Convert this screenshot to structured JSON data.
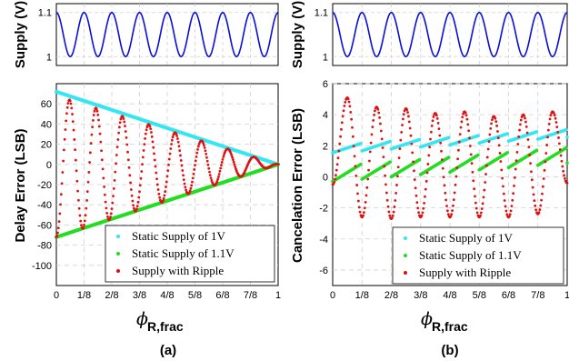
{
  "colors": {
    "static_1v": "#33e6f2",
    "static_1_1v": "#22dd22",
    "ripple": "#e01010",
    "supply": "#0a10d8",
    "grid": "#d0d0d0"
  },
  "panels": [
    {
      "label": "(a)",
      "x_label_symbol": "ϕ",
      "x_label_subscript": "R,frac",
      "supply_chart": {
        "type": "line",
        "ylabel": "Supply (V)",
        "yticks": [
          "1.1",
          "1"
        ],
        "ytick_values": [
          1.1,
          1.0
        ],
        "ylim": [
          0.98,
          1.12
        ],
        "cycles": 8,
        "range": [
          1.0,
          1.1
        ]
      },
      "main_chart": {
        "type": "scatter",
        "ylabel": "Delay Error (LSB)",
        "ylim": [
          -120,
          80
        ],
        "yticks": [
          "60",
          "40",
          "20",
          "0",
          "-20",
          "-40",
          "-60",
          "-80",
          "-100"
        ],
        "ytick_values": [
          60,
          40,
          20,
          0,
          -20,
          -40,
          -60,
          -80,
          -100
        ],
        "xlim": [
          0,
          1
        ],
        "xticks": [
          "0",
          "1/8",
          "2/8",
          "3/8",
          "4/8",
          "5/8",
          "6/8",
          "7/8",
          "1"
        ],
        "legend_position": "bottom-right",
        "series": [
          {
            "name": "Static Supply of 1V",
            "color_key": "static_1v",
            "x": [
              0,
              1
            ],
            "y": [
              72,
              0
            ]
          },
          {
            "name": "Static Supply of 1.1V",
            "color_key": "static_1_1v",
            "x": [
              0,
              1
            ],
            "y": [
              -72,
              0
            ]
          },
          {
            "name": "Supply with Ripple",
            "color_key": "ripple",
            "cycles": 8,
            "peak_at_start": 68,
            "trough_at_start": -72,
            "end_value": 0
          }
        ]
      }
    },
    {
      "label": "(b)",
      "x_label_symbol": "ϕ",
      "x_label_subscript": "R,frac",
      "supply_chart": {
        "type": "line",
        "ylabel": "Supply (V)",
        "yticks": [
          "1.1",
          "1"
        ],
        "ytick_values": [
          1.1,
          1.0
        ],
        "ylim": [
          0.98,
          1.12
        ],
        "cycles": 8,
        "range": [
          1.0,
          1.1
        ]
      },
      "main_chart": {
        "type": "scatter",
        "ylabel": "Cancelation Error (LSB)",
        "ylim": [
          -7,
          6
        ],
        "yticks": [
          "6",
          "4",
          "2",
          "0",
          "-2",
          "-4",
          "-6"
        ],
        "ytick_values": [
          6,
          4,
          2,
          0,
          -2,
          -4,
          -6
        ],
        "xlim": [
          0,
          1
        ],
        "xticks": [
          "0",
          "1/8",
          "2/8",
          "3/8",
          "4/8",
          "5/8",
          "6/8",
          "7/8",
          "1"
        ],
        "legend_position": "bottom-right",
        "series": [
          {
            "name": "Static Supply of 1V",
            "color_key": "static_1v",
            "cycles": 8,
            "start": 1.8,
            "end": 2.8,
            "sawtooth_amplitude": 0.5
          },
          {
            "name": "Static Supply of 1.1V",
            "color_key": "static_1_1v",
            "cycles": 8,
            "start": 0.2,
            "end": 1.4,
            "sawtooth_amplitude": 1.0
          },
          {
            "name": "Supply with Ripple",
            "color_key": "ripple",
            "cycles": 8,
            "peaks": [
              0,
              5.1,
              4.5,
              4.4,
              4.1,
              4.2,
              3.9,
              4.0,
              4.2
            ],
            "troughs": [
              -0.5,
              -2.6,
              -2.7,
              -2.6,
              -2.6,
              -2.6,
              -2.6,
              -2.4,
              -0.4
            ]
          }
        ]
      }
    }
  ]
}
